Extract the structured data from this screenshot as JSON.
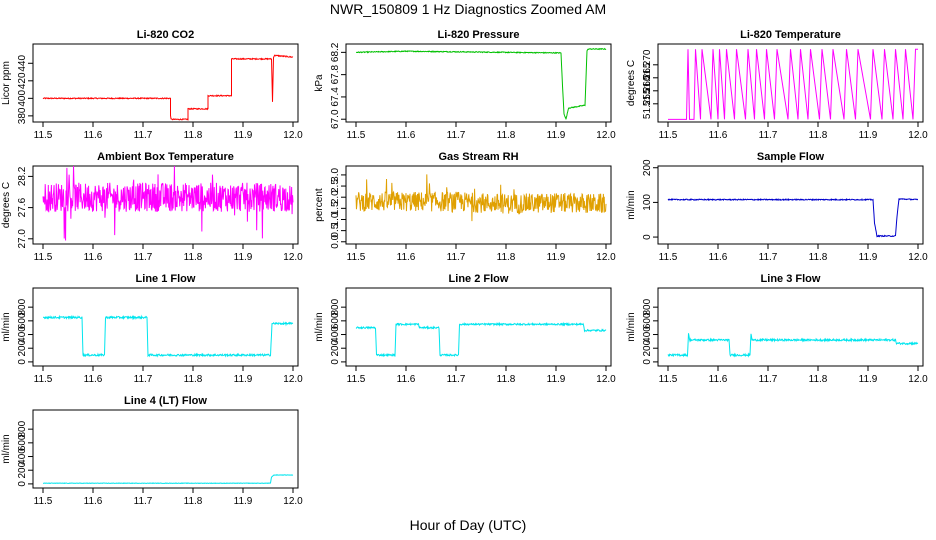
{
  "figure": {
    "title": "NWR_150809  1 Hz Diagnostics Zoomed AM",
    "xlabel": "Hour of Day (UTC)"
  },
  "chart_data": [
    {
      "type": "line",
      "title": "Li-820 CO2",
      "ylabel": "Licor ppm",
      "color": "#ff0000",
      "xlim": [
        11.48,
        12.01
      ],
      "ylim": [
        373,
        462
      ],
      "xticks": [
        "11.5",
        "11.6",
        "11.7",
        "11.8",
        "11.9",
        "12.0"
      ],
      "yticks": [
        "380",
        "400",
        "420",
        "440"
      ],
      "noise": 0.6,
      "spikes": 0,
      "series": [
        {
          "x": [
            11.5,
            11.755,
            11.755,
            11.756,
            11.79,
            11.79,
            11.83,
            11.83,
            11.877,
            11.877,
            11.957,
            11.959,
            11.961,
            11.963,
            12.0
          ],
          "y": [
            400,
            400,
            381,
            376,
            376,
            388,
            388,
            403,
            403,
            445,
            445,
            396,
            447,
            449,
            447
          ]
        }
      ]
    },
    {
      "type": "line",
      "title": "Li-820 Pressure",
      "ylabel": "kPa",
      "color": "#00c000",
      "xlim": [
        11.48,
        12.01
      ],
      "ylim": [
        66.95,
        68.35
      ],
      "xticks": [
        "11.5",
        "11.6",
        "11.7",
        "11.8",
        "11.9",
        "12.0"
      ],
      "yticks": [
        "67.0",
        "67.4",
        "67.8",
        "68.2"
      ],
      "noise": 0.008,
      "spikes": 0,
      "series": [
        {
          "x": [
            11.5,
            11.6,
            11.7,
            11.8,
            11.91,
            11.913,
            11.916,
            11.92,
            11.925,
            11.958,
            11.962,
            11.965,
            12.0
          ],
          "y": [
            68.2,
            68.22,
            68.21,
            68.2,
            68.19,
            67.6,
            67.1,
            67.0,
            67.2,
            67.25,
            68.23,
            68.26,
            68.26
          ]
        }
      ]
    },
    {
      "type": "line",
      "title": "Li-820 Temperature",
      "ylabel": "degrees C",
      "color": "#ff00ff",
      "xlim": [
        11.48,
        12.01
      ],
      "ylim": [
        51.248,
        51.278
      ],
      "xticks": [
        "11.5",
        "11.6",
        "11.7",
        "11.8",
        "11.9",
        "12.0"
      ],
      "yticks": [
        "51.255",
        "51.260",
        "51.265",
        "51.270"
      ],
      "noise": 0,
      "spikes": 0,
      "series": [
        {
          "x": [
            11.5,
            11.505,
            11.537,
            11.54,
            11.543,
            11.552,
            11.555,
            11.565,
            11.568,
            11.586,
            11.59,
            11.6,
            11.603,
            11.613,
            11.617,
            11.633,
            11.637,
            11.655,
            11.66,
            11.673,
            11.677,
            11.693,
            11.697,
            11.713,
            11.718,
            11.74,
            11.745,
            11.76,
            11.765,
            11.78,
            11.785,
            11.803,
            11.808,
            11.825,
            11.83,
            11.852,
            11.857,
            11.875,
            11.88,
            11.905,
            11.91,
            11.928,
            11.933,
            11.95,
            11.955,
            11.97,
            11.975,
            11.99,
            11.995,
            12.0
          ],
          "y": [
            51.249,
            51.249,
            51.249,
            51.276,
            51.249,
            51.249,
            51.276,
            51.249,
            51.276,
            51.249,
            51.276,
            51.249,
            51.276,
            51.249,
            51.276,
            51.249,
            51.276,
            51.249,
            51.276,
            51.249,
            51.276,
            51.249,
            51.276,
            51.249,
            51.276,
            51.249,
            51.276,
            51.249,
            51.276,
            51.249,
            51.276,
            51.249,
            51.276,
            51.249,
            51.276,
            51.249,
            51.276,
            51.249,
            51.276,
            51.249,
            51.276,
            51.249,
            51.276,
            51.249,
            51.276,
            51.249,
            51.276,
            51.249,
            51.276,
            51.276
          ]
        }
      ]
    },
    {
      "type": "line",
      "title": "Ambient Box Temperature",
      "ylabel": "degrees C",
      "color": "#ff00ff",
      "xlim": [
        11.48,
        12.01
      ],
      "ylim": [
        26.9,
        28.4
      ],
      "xticks": [
        "11.5",
        "11.6",
        "11.7",
        "11.8",
        "11.9",
        "12.0"
      ],
      "yticks": [
        "27.0",
        "27.6",
        "28.2"
      ],
      "noise": 0.28,
      "spikes": 0.7,
      "series": [
        {
          "x": [
            11.5,
            11.6,
            11.7,
            11.8,
            11.9,
            11.99,
            12.0
          ],
          "y": [
            27.8,
            27.8,
            27.8,
            27.8,
            27.8,
            27.8,
            27.7
          ]
        }
      ]
    },
    {
      "type": "line",
      "title": "Gas Stream RH",
      "ylabel": "percent",
      "color": "#e0a000",
      "xlim": [
        11.48,
        12.01
      ],
      "ylim": [
        -0.1,
        3.4
      ],
      "xticks": [
        "11.5",
        "11.6",
        "11.7",
        "11.8",
        "11.9",
        "12.0"
      ],
      "yticks": [
        "0.0",
        "0.5",
        "1.0",
        "1.5",
        "2.0",
        "2.5",
        "3.0"
      ],
      "noise": 0.45,
      "spikes": 1.2,
      "series": [
        {
          "x": [
            11.5,
            11.6,
            11.7,
            11.8,
            11.9,
            12.0
          ],
          "y": [
            1.8,
            1.8,
            1.8,
            1.7,
            1.75,
            1.7
          ]
        }
      ]
    },
    {
      "type": "line",
      "title": "Sample Flow",
      "ylabel": "ml/min",
      "color": "#0000cc",
      "xlim": [
        11.48,
        12.01
      ],
      "ylim": [
        -20,
        205
      ],
      "xticks": [
        "11.5",
        "11.6",
        "11.7",
        "11.8",
        "11.9",
        "12.0"
      ],
      "yticks": [
        "0",
        "100",
        "200"
      ],
      "noise": 1.5,
      "spikes": 0,
      "series": [
        {
          "x": [
            11.5,
            11.7,
            11.91,
            11.913,
            11.918,
            11.955,
            11.958,
            11.962,
            12.0
          ],
          "y": [
            108,
            108,
            108,
            40,
            3,
            3,
            60,
            110,
            108
          ]
        }
      ]
    },
    {
      "type": "line",
      "title": "Line 1 Flow",
      "ylabel": "ml/min",
      "color": "#00e5ee",
      "xlim": [
        11.48,
        12.01
      ],
      "ylim": [
        -60,
        1080
      ],
      "xticks": [
        "11.5",
        "11.6",
        "11.7",
        "11.8",
        "11.9",
        "12.0"
      ],
      "yticks": [
        "0",
        "200",
        "400",
        "600",
        "800"
      ],
      "noise": 14,
      "spikes": 0,
      "series": [
        {
          "x": [
            11.5,
            11.578,
            11.58,
            11.623,
            11.625,
            11.708,
            11.71,
            11.955,
            11.958,
            12.0
          ],
          "y": [
            650,
            650,
            100,
            100,
            650,
            650,
            100,
            100,
            560,
            560
          ]
        }
      ]
    },
    {
      "type": "line",
      "title": "Line 2 Flow",
      "ylabel": "ml/min",
      "color": "#00e5ee",
      "xlim": [
        11.48,
        12.01
      ],
      "ylim": [
        -60,
        1080
      ],
      "xticks": [
        "11.5",
        "11.6",
        "11.7",
        "11.8",
        "11.9",
        "12.0"
      ],
      "yticks": [
        "0",
        "200",
        "400",
        "600",
        "800"
      ],
      "noise": 12,
      "spikes": 0,
      "series": [
        {
          "x": [
            11.5,
            11.539,
            11.541,
            11.578,
            11.58,
            11.625,
            11.627,
            11.666,
            11.668,
            11.705,
            11.707,
            11.955,
            11.957,
            12.0
          ],
          "y": [
            500,
            500,
            100,
            100,
            550,
            550,
            500,
            500,
            100,
            100,
            550,
            550,
            460,
            460
          ]
        }
      ]
    },
    {
      "type": "line",
      "title": "Line 3 Flow",
      "ylabel": "ml/min",
      "color": "#00e5ee",
      "xlim": [
        11.48,
        12.01
      ],
      "ylim": [
        -60,
        1080
      ],
      "xticks": [
        "11.5",
        "11.6",
        "11.7",
        "11.8",
        "11.9",
        "12.0"
      ],
      "yticks": [
        "0",
        "200",
        "400",
        "600",
        "800"
      ],
      "noise": 14,
      "spikes": 0,
      "series": [
        {
          "x": [
            11.5,
            11.539,
            11.541,
            11.543,
            11.622,
            11.624,
            11.664,
            11.666,
            11.668,
            11.955,
            11.957,
            12.0
          ],
          "y": [
            100,
            100,
            420,
            320,
            320,
            100,
            100,
            420,
            320,
            320,
            270,
            270
          ]
        }
      ]
    },
    {
      "type": "line",
      "title": "Line 4 (LT) Flow",
      "ylabel": "ml/min",
      "color": "#00e5ee",
      "xlim": [
        11.48,
        12.01
      ],
      "ylim": [
        -60,
        1080
      ],
      "xticks": [
        "11.5",
        "11.6",
        "11.7",
        "11.8",
        "11.9",
        "12.0"
      ],
      "yticks": [
        "0",
        "200",
        "400",
        "600",
        "800"
      ],
      "noise": 3,
      "spikes": 0,
      "series": [
        {
          "x": [
            11.5,
            11.955,
            11.957,
            11.962,
            12.0
          ],
          "y": [
            10,
            10,
            100,
            130,
            130
          ]
        }
      ]
    }
  ]
}
